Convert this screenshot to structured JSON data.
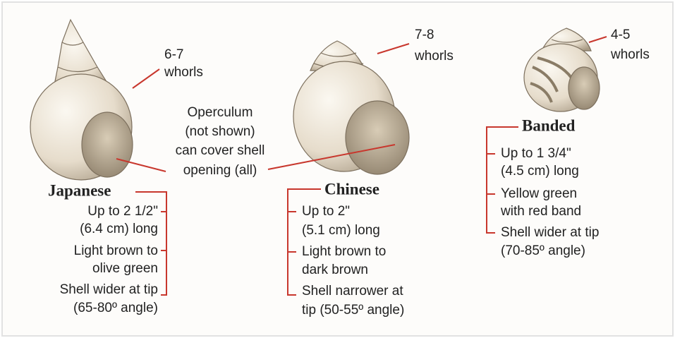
{
  "species": [
    {
      "name": "Japanese",
      "whorls": [
        "6-7",
        "whorls"
      ],
      "details": [
        "Up to 2 1/2\"",
        "(6.4 cm) long",
        "Light brown to",
        "olive green",
        "Shell wider at tip",
        "(65-80º angle)"
      ]
    },
    {
      "name": "Chinese",
      "whorls": [
        "7-8",
        "whorls"
      ],
      "details": [
        "Up to 2\"",
        "(5.1 cm) long",
        "Light brown to",
        "dark brown",
        "Shell narrower at",
        "tip (50-55º angle)"
      ]
    },
    {
      "name": "Banded",
      "whorls": [
        "4-5",
        "whorls"
      ],
      "details": [
        "Up to 1 3/4\"",
        "(4.5 cm) long",
        "Yellow green",
        "with red band",
        "Shell wider at tip",
        "(70-85º angle)"
      ]
    }
  ],
  "note": [
    "Operculum",
    "(not shown)",
    "can cover shell",
    "opening (all)"
  ]
}
